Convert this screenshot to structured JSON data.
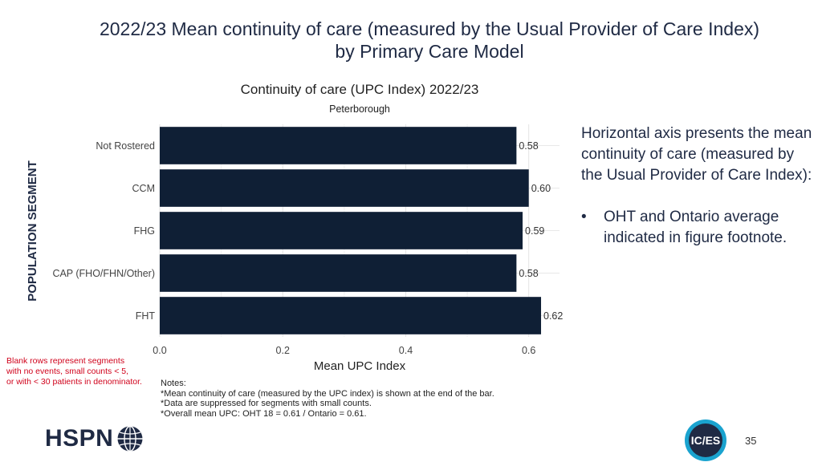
{
  "slide": {
    "title_line1": "2022/23 Mean continuity of care (measured by the Usual Provider of Care Index)",
    "title_line2": "by Primary Care Model",
    "page_number": "35"
  },
  "side_note": {
    "paragraph": "Horizontal axis presents the mean continuity of care (measured by the Usual Provider of Care Index):",
    "bullet_symbol": "•",
    "bullet": "OHT and Ontario average indicated in figure footnote."
  },
  "blank_note": {
    "line1": "Blank rows represent segments",
    "line2": "with no events, small counts < 5,",
    "line3": "or with < 30 patients in denominator."
  },
  "notes": {
    "heading": "Notes:",
    "line1": "*Mean continuity of care (measured by the UPC index) is shown at the end of the bar.",
    "line2": "*Data are suppressed for segments with small counts.",
    "line3": "*Overall mean UPC: OHT 18 = 0.61 / Ontario = 0.61."
  },
  "logos": {
    "hspn_text": "HSPN",
    "ices_text": "IC/ES"
  },
  "chart_data": {
    "type": "bar",
    "orientation": "horizontal",
    "title": "Continuity of care (UPC Index) 2022/23",
    "subtitle": "Peterborough",
    "xlabel": "Mean UPC Index",
    "ylabel": "POPULATION SEGMENT",
    "categories": [
      "Not Rostered",
      "CCM",
      "FHG",
      "CAP (FHO/FHN/Other)",
      "FHT"
    ],
    "values": [
      0.58,
      0.6,
      0.59,
      0.58,
      0.62
    ],
    "data_labels": [
      "0.58",
      "0.60",
      "0.59",
      "0.58",
      "0.62"
    ],
    "xlim": [
      0,
      0.65
    ],
    "xticks": [
      0.0,
      0.2,
      0.4,
      0.6
    ],
    "xtick_labels": [
      "0.0",
      "0.2",
      "0.4",
      "0.6"
    ],
    "grid": true,
    "bar_color": "#0f1f35"
  }
}
